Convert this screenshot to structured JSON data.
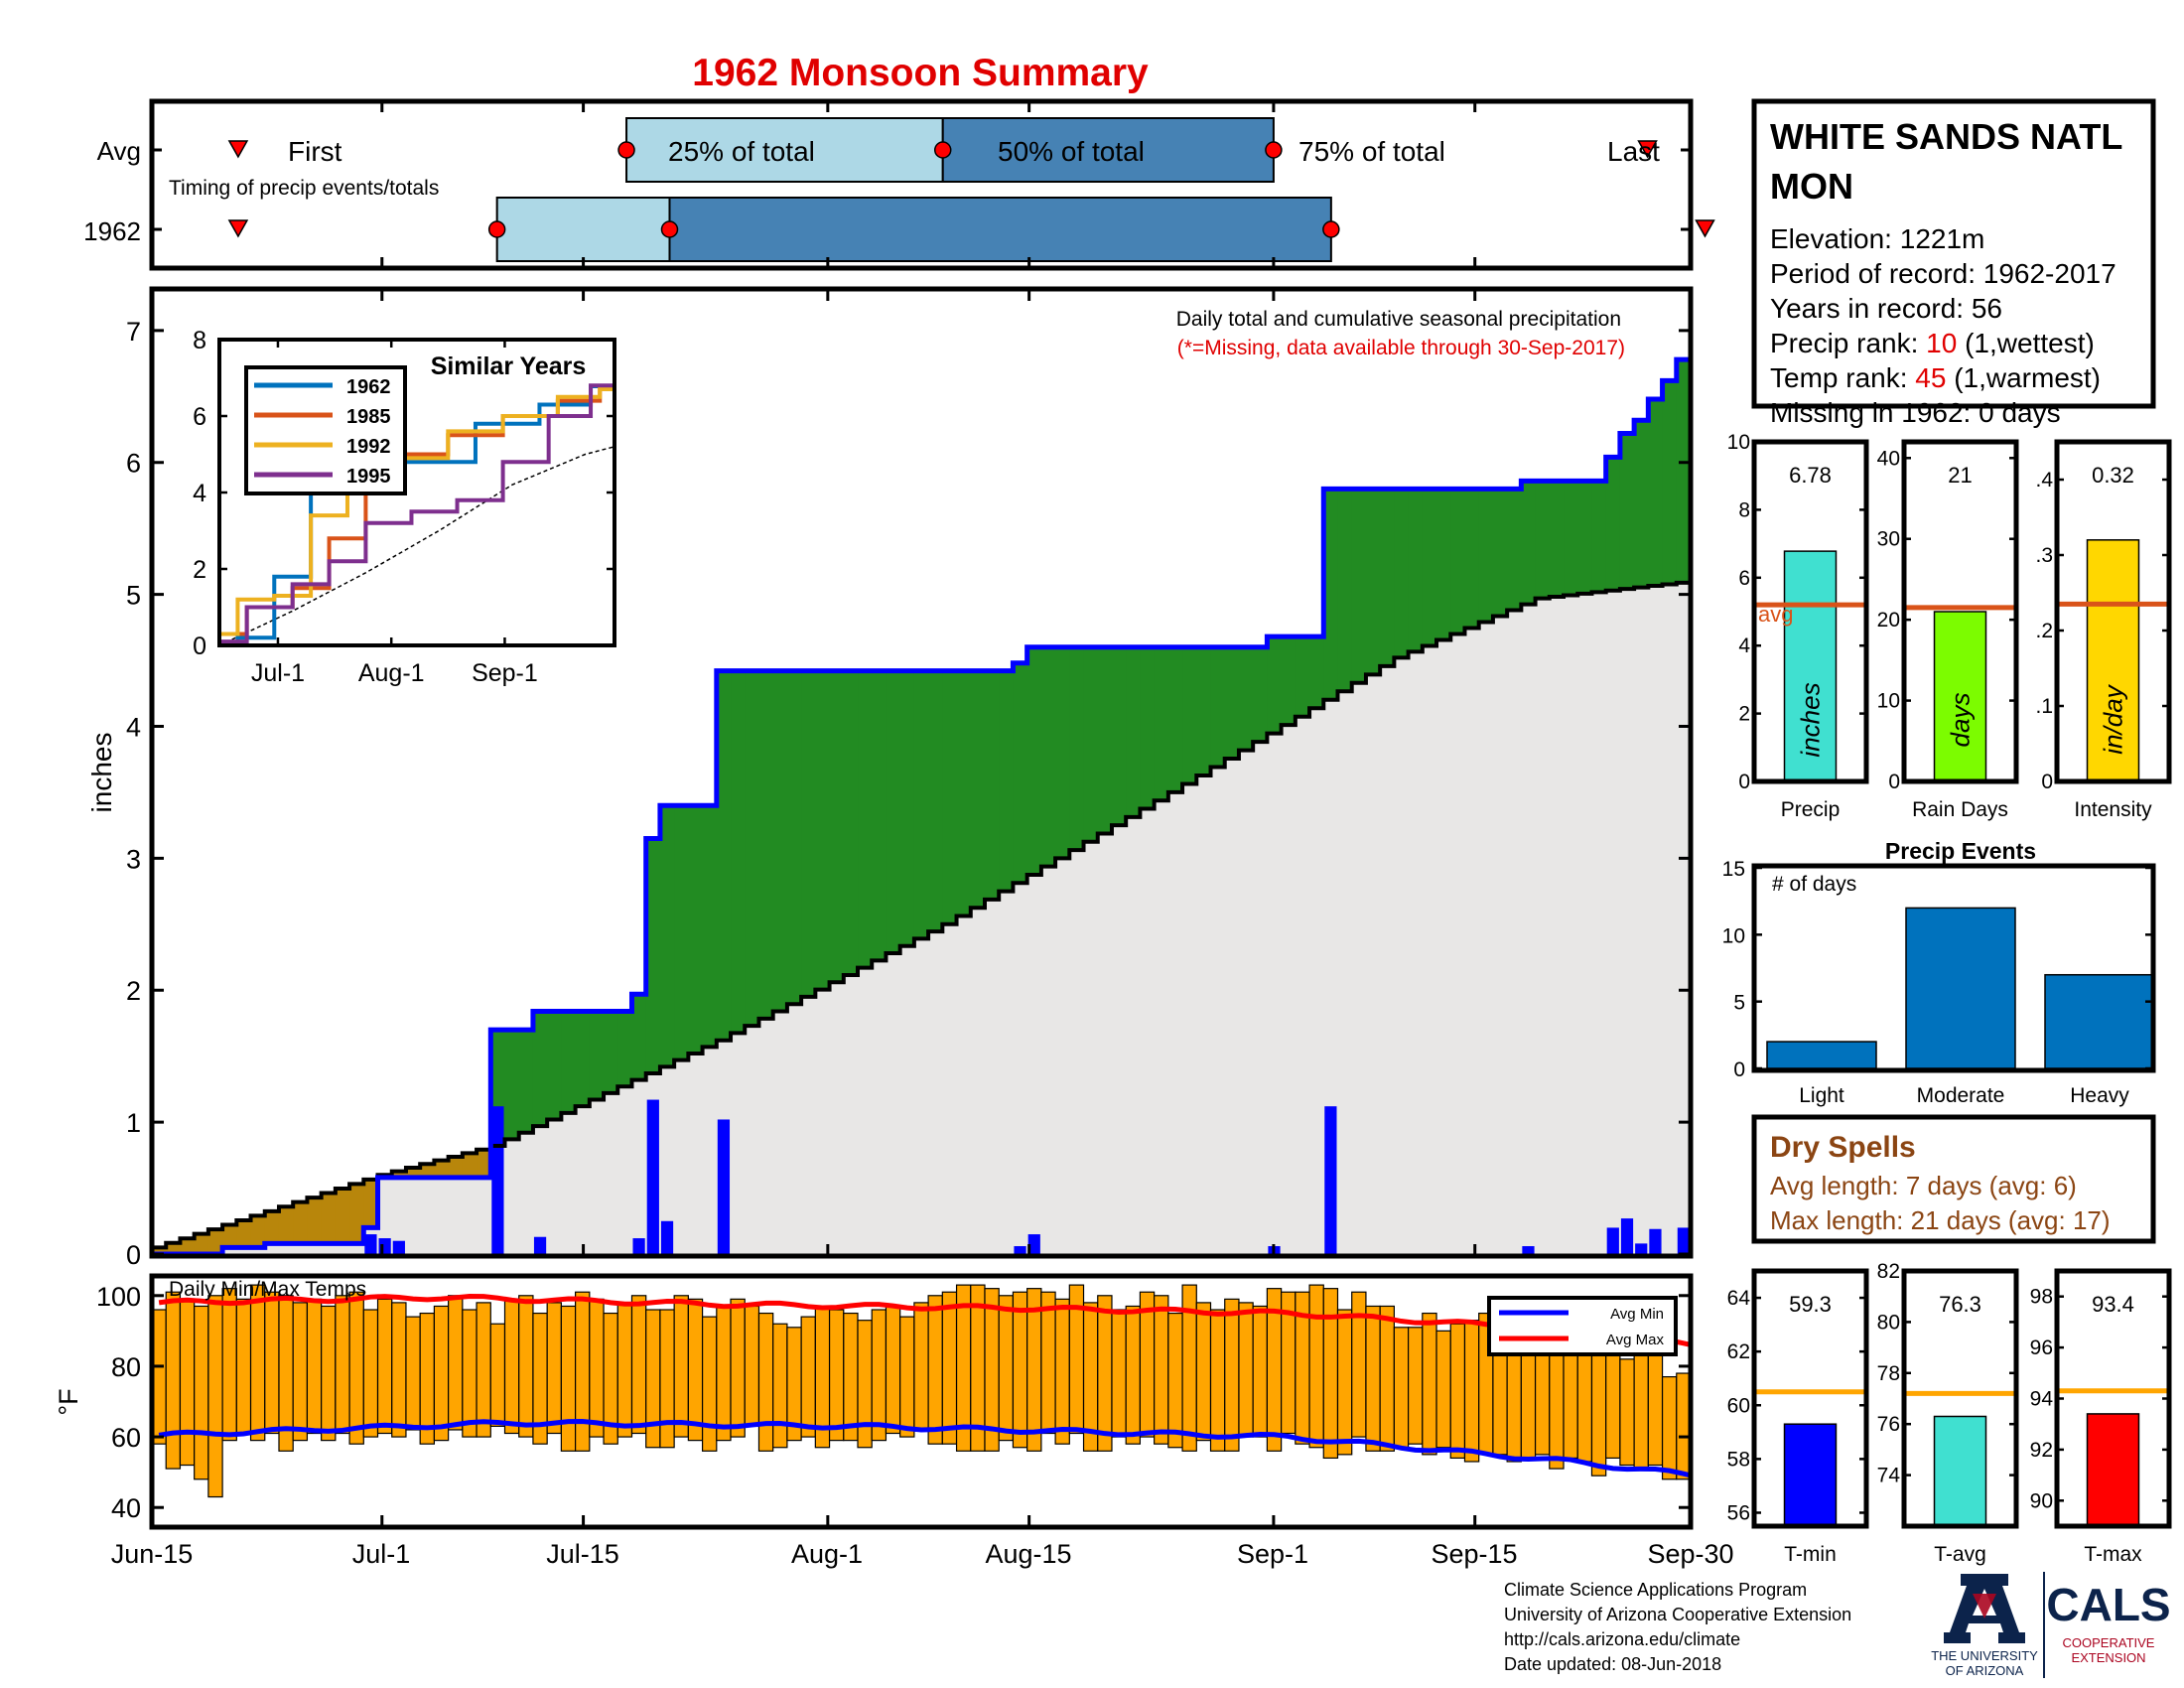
{
  "title": "1962 Monsoon Summary",
  "timing": {
    "row_labels": [
      "Avg",
      "1962"
    ],
    "subtitle": "Timing of precip events/totals",
    "first_label": "First",
    "last_label": "Last",
    "pct25_label": "25% of total",
    "pct50_label": "50% of total",
    "pct75_label": "75% of total",
    "avg": {
      "first": "Jun-20",
      "p25": "Jul-17",
      "p50": "Aug-08",
      "p75": "Aug-31",
      "last": "Sep-26"
    },
    "year": {
      "first": "Jun-20",
      "p25": "Jul-08",
      "p50": "Jul-20",
      "p75": "Sep-04",
      "last": "Sep-30"
    }
  },
  "station": {
    "name_line1": "WHITE SANDS NATL",
    "name_line2": "MON",
    "elevation": "Elevation: 1221m",
    "period": "Period of record: 1962-2017",
    "years": "Years in record: 56",
    "precip_rank_prefix": "Precip rank: ",
    "precip_rank_value": "10",
    "precip_rank_suffix": " (1,wettest)",
    "temp_rank_prefix": "Temp rank: ",
    "temp_rank_value": "45",
    "temp_rank_suffix": " (1,warmest)",
    "missing": "Missing in 1962: 0 days"
  },
  "main_chart": {
    "ylabel": "inches",
    "note1": "Daily total and cumulative seasonal precipitation",
    "note2": "(*=Missing, data available through 30-Sep-2017)",
    "colors": {
      "above": "#228b22",
      "below": "#b8860b",
      "avg_fill": "#e8e7e6",
      "cum": "#0000ff",
      "daily": "#0000ff"
    }
  },
  "inset": {
    "title": "Similar Years",
    "yticks": [
      "0",
      "2",
      "4",
      "6",
      "8"
    ],
    "xticks": [
      "Jul-1",
      "Aug-1",
      "Sep-1"
    ],
    "legend": [
      {
        "name": "1962",
        "color": "#0072bd"
      },
      {
        "name": "1985",
        "color": "#d95319"
      },
      {
        "name": "1992",
        "color": "#edb120"
      },
      {
        "name": "1995",
        "color": "#7e2f8e"
      }
    ]
  },
  "temp_chart": {
    "label": "Daily Min/Max Temps",
    "ylabel": "°F",
    "legend_min": "Avg Min",
    "legend_max": "Avg Max",
    "bar_color": "#ffa500"
  },
  "x_axis_labels": [
    "Jun-15",
    "Jul-1",
    "Jul-15",
    "Aug-1",
    "Aug-15",
    "Sep-1",
    "Sep-15",
    "Sep-30"
  ],
  "small_bars": {
    "precip": {
      "value": "6.78",
      "unit": "inches",
      "label": "Precip",
      "color": "#40e0d0"
    },
    "raindays": {
      "value": "21",
      "unit": "days",
      "label": "Rain Days",
      "color": "#7cfc00"
    },
    "intensity": {
      "value": "0.32",
      "unit": "in/day",
      "label": "Intensity",
      "color": "#ffd700"
    },
    "avg_label": "avg"
  },
  "events": {
    "title": "Precip Events",
    "ylabel": "# of days",
    "categories": [
      "Light",
      "Moderate",
      "Heavy"
    ]
  },
  "dry_spells": {
    "title": "Dry Spells",
    "avg_length": "Avg length: 7 days (avg: 6)",
    "max_length": "Max length: 21 days (avg: 17)"
  },
  "temp_bars": {
    "tmin": {
      "value": "59.3",
      "label": "T-min",
      "color": "#0000ff"
    },
    "tavg": {
      "value": "76.3",
      "label": "T-avg",
      "color": "#40e0d0"
    },
    "tmax": {
      "value": "93.4",
      "label": "T-max",
      "color": "#ff0000"
    }
  },
  "footer": {
    "line1": "Climate Science Applications Program",
    "line2": "University of Arizona Cooperative Extension",
    "line3": "http://cals.arizona.edu/climate",
    "line4": " Date updated: 08-Jun-2018",
    "ua_line1": "THE UNIVERSITY",
    "ua_line2": "OF ARIZONA",
    "cals": "CALS",
    "coop1": "COOPERATIVE",
    "coop2": "EXTENSION"
  },
  "chart_data": [
    {
      "type": "area",
      "title": "Daily total and cumulative seasonal precipitation",
      "ylabel": "inches",
      "ylim": [
        0,
        7.3
      ],
      "xlim": [
        "Jun-15",
        "Sep-30"
      ],
      "x_ticks": [
        "Jun-15",
        "Jul-1",
        "Jul-15",
        "Aug-1",
        "Aug-15",
        "Sep-1",
        "Sep-15",
        "Sep-30"
      ],
      "cumulative_1962_steps": [
        [
          0,
          0.0
        ],
        [
          5,
          0.05
        ],
        [
          8,
          0.08
        ],
        [
          14,
          0.08
        ],
        [
          15,
          0.2
        ],
        [
          16,
          0.58
        ],
        [
          23,
          0.58
        ],
        [
          24,
          1.7
        ],
        [
          27,
          1.84
        ],
        [
          34,
          1.97
        ],
        [
          35,
          3.15
        ],
        [
          36,
          3.4
        ],
        [
          39,
          3.4
        ],
        [
          40,
          4.42
        ],
        [
          60,
          4.42
        ],
        [
          61,
          4.48
        ],
        [
          62,
          4.6
        ],
        [
          78,
          4.6
        ],
        [
          79,
          4.68
        ],
        [
          82,
          4.68
        ],
        [
          83,
          5.8
        ],
        [
          96,
          5.8
        ],
        [
          97,
          5.86
        ],
        [
          102,
          5.86
        ],
        [
          103,
          6.04
        ],
        [
          104,
          6.22
        ],
        [
          105,
          6.32
        ],
        [
          106,
          6.48
        ],
        [
          107,
          6.62
        ],
        [
          108,
          6.78
        ],
        [
          109,
          6.78
        ]
      ],
      "cumulative_avg": [
        [
          0,
          0.05
        ],
        [
          16,
          0.6
        ],
        [
          24,
          0.82
        ],
        [
          40,
          1.62
        ],
        [
          56,
          2.5
        ],
        [
          72,
          3.5
        ],
        [
          88,
          4.52
        ],
        [
          98,
          4.97
        ],
        [
          109,
          5.1
        ]
      ],
      "daily_1962": [
        [
          15,
          0.15
        ],
        [
          16,
          0.12
        ],
        [
          17,
          0.1
        ],
        [
          24,
          1.12
        ],
        [
          27,
          0.13
        ],
        [
          34,
          0.12
        ],
        [
          35,
          1.17
        ],
        [
          36,
          0.25
        ],
        [
          40,
          1.02
        ],
        [
          61,
          0.06
        ],
        [
          62,
          0.15
        ],
        [
          79,
          0.06
        ],
        [
          83,
          1.12
        ],
        [
          97,
          0.06
        ],
        [
          103,
          0.2
        ],
        [
          104,
          0.27
        ],
        [
          105,
          0.08
        ],
        [
          106,
          0.19
        ],
        [
          108,
          0.2
        ]
      ]
    },
    {
      "type": "line",
      "title": "Similar Years",
      "x_ticks": [
        "Jul-1",
        "Aug-1",
        "Sep-1"
      ],
      "ylim": [
        0,
        8
      ],
      "series": [
        {
          "name": "1962",
          "values": [
            [
              0,
              0
            ],
            [
              10,
              0.2
            ],
            [
              20,
              1.8
            ],
            [
              30,
              4.4
            ],
            [
              40,
              4.7
            ],
            [
              60,
              4.8
            ],
            [
              80,
              5.8
            ],
            [
              95,
              6.3
            ],
            [
              108,
              6.78
            ]
          ]
        },
        {
          "name": "1985",
          "values": [
            [
              0,
              0.3
            ],
            [
              15,
              1.0
            ],
            [
              25,
              1.5
            ],
            [
              35,
              2.8
            ],
            [
              45,
              4.0
            ],
            [
              55,
              5.0
            ],
            [
              70,
              5.5
            ],
            [
              85,
              6.0
            ],
            [
              100,
              6.4
            ],
            [
              108,
              6.7
            ]
          ]
        },
        {
          "name": "1992",
          "values": [
            [
              0,
              0.3
            ],
            [
              10,
              1.2
            ],
            [
              20,
              1.3
            ],
            [
              30,
              3.4
            ],
            [
              40,
              4.6
            ],
            [
              55,
              4.9
            ],
            [
              70,
              5.6
            ],
            [
              85,
              6.0
            ],
            [
              100,
              6.5
            ],
            [
              108,
              6.7
            ]
          ]
        },
        {
          "name": "1995",
          "values": [
            [
              0,
              0.1
            ],
            [
              15,
              1.0
            ],
            [
              25,
              1.6
            ],
            [
              35,
              2.2
            ],
            [
              45,
              3.2
            ],
            [
              60,
              3.5
            ],
            [
              70,
              3.8
            ],
            [
              85,
              4.8
            ],
            [
              95,
              6.0
            ],
            [
              108,
              6.8
            ]
          ]
        }
      ],
      "avg_values": [
        [
          0,
          0
        ],
        [
          20,
          0.9
        ],
        [
          40,
          1.9
        ],
        [
          60,
          3.0
        ],
        [
          80,
          4.2
        ],
        [
          100,
          5.0
        ],
        [
          108,
          5.2
        ]
      ]
    },
    {
      "type": "bar",
      "title": "Daily Min/Max Temps",
      "ylabel": "°F",
      "ylim": [
        35,
        105
      ],
      "tmax": [
        96,
        101,
        99,
        97,
        100,
        102,
        99,
        103,
        101,
        100,
        98,
        99,
        97,
        100,
        101,
        96,
        99,
        98,
        94,
        95,
        97,
        100,
        96,
        98,
        92,
        99,
        100,
        95,
        98,
        97,
        101,
        99,
        95,
        98,
        100,
        96,
        96,
        100,
        99,
        94,
        97,
        99,
        97,
        95,
        92,
        91,
        94,
        97,
        96,
        95,
        93,
        96,
        97,
        94,
        98,
        100,
        101,
        103,
        103,
        102,
        100,
        101,
        102,
        101,
        99,
        103,
        98,
        100,
        96,
        97,
        101,
        100,
        95,
        103,
        98,
        96,
        99,
        98,
        97,
        102,
        101,
        101,
        103,
        102,
        96,
        101,
        97,
        97,
        91,
        91,
        95,
        90,
        92,
        93,
        95,
        93,
        91,
        92,
        91,
        87,
        92,
        85,
        89,
        84,
        82,
        84,
        84,
        77,
        78,
        84
      ],
      "tmin": [
        58,
        51,
        52,
        48,
        43,
        59,
        61,
        59,
        61,
        56,
        59,
        61,
        59,
        61,
        58,
        60,
        61,
        60,
        62,
        58,
        59,
        62,
        60,
        60,
        63,
        61,
        60,
        58,
        61,
        56,
        56,
        60,
        58,
        60,
        61,
        57,
        57,
        60,
        59,
        56,
        59,
        60,
        63,
        56,
        57,
        59,
        60,
        57,
        59,
        59,
        57,
        59,
        61,
        60,
        62,
        58,
        58,
        56,
        56,
        56,
        59,
        57,
        56,
        61,
        58,
        61,
        56,
        56,
        60,
        58,
        60,
        58,
        57,
        56,
        59,
        56,
        56,
        60,
        60,
        56,
        61,
        58,
        57,
        54,
        55,
        60,
        56,
        56,
        57,
        58,
        55,
        57,
        54,
        53,
        55,
        55,
        53,
        54,
        55,
        51,
        54,
        53,
        49,
        54,
        52,
        51,
        52,
        48,
        48,
        49
      ],
      "avg_max": [
        [
          0,
          98
        ],
        [
          20,
          99.5
        ],
        [
          40,
          97.5
        ],
        [
          60,
          96.5
        ],
        [
          80,
          95
        ],
        [
          95,
          91.5
        ],
        [
          109,
          86
        ]
      ],
      "avg_min": [
        [
          0,
          60.5
        ],
        [
          25,
          64
        ],
        [
          50,
          63
        ],
        [
          80,
          60
        ],
        [
          100,
          53
        ],
        [
          109,
          49
        ]
      ]
    },
    {
      "type": "bar",
      "title": "Seasonal totals",
      "categories": [
        "Precip",
        "Rain Days",
        "Intensity"
      ],
      "values": [
        6.78,
        21,
        0.32
      ],
      "averages": [
        5.2,
        21.5,
        0.235
      ],
      "ylims": [
        [
          0,
          10
        ],
        [
          0,
          42
        ],
        [
          0,
          0.45
        ]
      ]
    },
    {
      "type": "bar",
      "title": "Precip Events",
      "ylabel": "# of days",
      "categories": [
        "Light",
        "Moderate",
        "Heavy"
      ],
      "values": [
        2,
        12,
        7
      ],
      "ylim": [
        0,
        15
      ]
    },
    {
      "type": "bar",
      "title": "Seasonal temperatures",
      "categories": [
        "T-min",
        "T-avg",
        "T-max"
      ],
      "values": [
        59.3,
        76.3,
        93.4
      ],
      "averages": [
        60.5,
        77.2,
        94.3
      ],
      "ylims": [
        [
          55.5,
          65
        ],
        [
          72,
          82
        ],
        [
          89,
          99
        ]
      ]
    }
  ]
}
